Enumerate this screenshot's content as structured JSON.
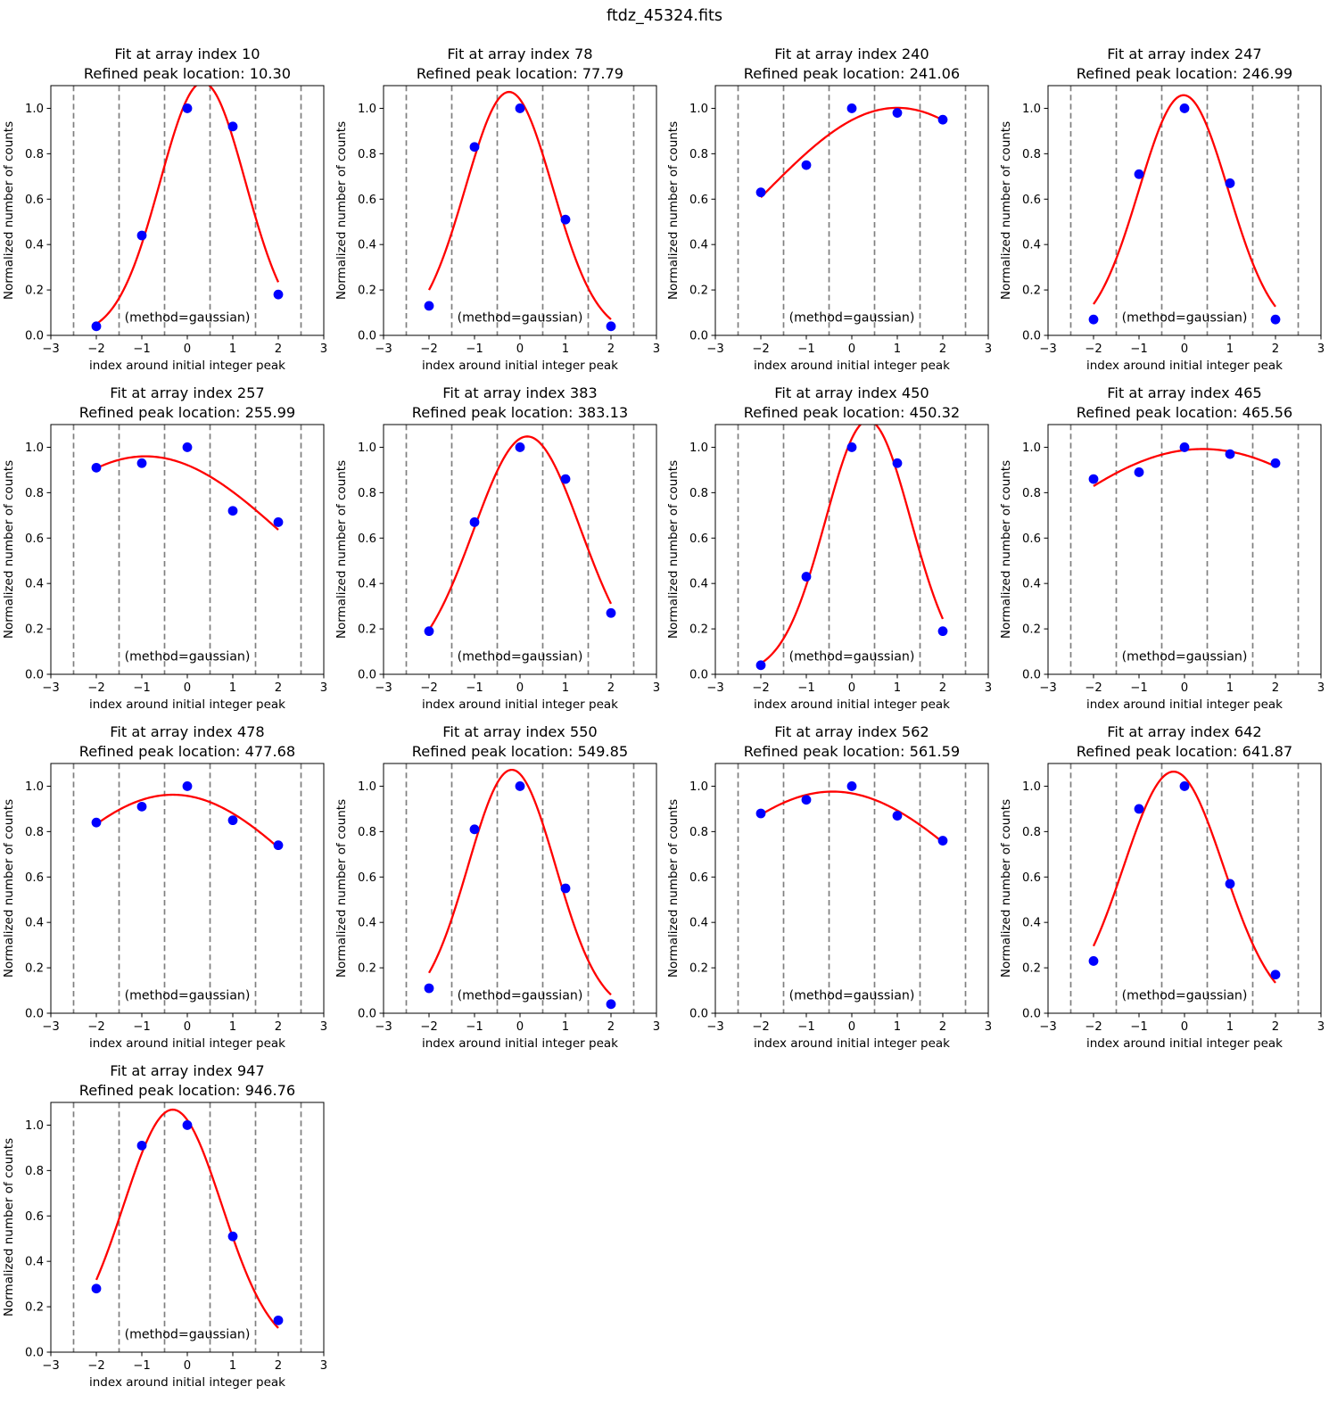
{
  "figure": {
    "title": "ftdz_45324.fits"
  },
  "colors": {
    "point": "#0000ff",
    "fit_curve": "#ff0000",
    "dashed_line": "#7f7f7f",
    "spine": "#000000",
    "text": "#000000",
    "background": "#ffffff"
  },
  "axes_common": {
    "xlabel": "index around initial integer peak",
    "ylabel": "Normalized number of counts",
    "annotation": "(method=gaussian)",
    "xlim": [
      -3,
      3
    ],
    "ylim": [
      0,
      1.1
    ],
    "xticks": [
      -3,
      -2,
      -1,
      0,
      1,
      2,
      3
    ],
    "xtick_labels": [
      "−3",
      "−2",
      "−1",
      "0",
      "1",
      "2",
      "3"
    ],
    "yticks": [
      0.0,
      0.2,
      0.4,
      0.6,
      0.8,
      1.0
    ],
    "ytick_labels": [
      "0.0",
      "0.2",
      "0.4",
      "0.6",
      "0.8",
      "1.0"
    ],
    "dashed_vlines": [
      -2.5,
      -1.5,
      -0.5,
      0.5,
      1.5,
      2.5
    ],
    "grid": false,
    "fit_method": "gaussian",
    "fit_x_range": [
      -2,
      2
    ]
  },
  "chart_data": [
    {
      "type": "scatter",
      "fit": "gaussian",
      "title": "Fit at array index 10",
      "subtitle": "Refined peak location: 10.30",
      "array_index": 10,
      "refined_peak_location": 10.3,
      "x": [
        -2,
        -1,
        0,
        1,
        2
      ],
      "y": [
        0.04,
        0.44,
        1.0,
        0.92,
        0.18
      ]
    },
    {
      "type": "scatter",
      "fit": "gaussian",
      "title": "Fit at array index 78",
      "subtitle": "Refined peak location: 77.79",
      "array_index": 78,
      "refined_peak_location": 77.79,
      "x": [
        -2,
        -1,
        0,
        1,
        2
      ],
      "y": [
        0.13,
        0.83,
        1.0,
        0.51,
        0.04
      ]
    },
    {
      "type": "scatter",
      "fit": "gaussian",
      "title": "Fit at array index 240",
      "subtitle": "Refined peak location: 241.06",
      "array_index": 240,
      "refined_peak_location": 241.06,
      "x": [
        -2,
        -1,
        0,
        1,
        2
      ],
      "y": [
        0.63,
        0.75,
        1.0,
        0.98,
        0.95
      ]
    },
    {
      "type": "scatter",
      "fit": "gaussian",
      "title": "Fit at array index 247",
      "subtitle": "Refined peak location: 246.99",
      "array_index": 247,
      "refined_peak_location": 246.99,
      "x": [
        -2,
        -1,
        0,
        1,
        2
      ],
      "y": [
        0.07,
        0.71,
        1.0,
        0.67,
        0.07
      ]
    },
    {
      "type": "scatter",
      "fit": "gaussian",
      "title": "Fit at array index 257",
      "subtitle": "Refined peak location: 255.99",
      "array_index": 257,
      "refined_peak_location": 255.99,
      "x": [
        -2,
        -1,
        0,
        1,
        2
      ],
      "y": [
        0.91,
        0.93,
        1.0,
        0.72,
        0.67
      ]
    },
    {
      "type": "scatter",
      "fit": "gaussian",
      "title": "Fit at array index 383",
      "subtitle": "Refined peak location: 383.13",
      "array_index": 383,
      "refined_peak_location": 383.13,
      "x": [
        -2,
        -1,
        0,
        1,
        2
      ],
      "y": [
        0.19,
        0.67,
        1.0,
        0.86,
        0.27
      ]
    },
    {
      "type": "scatter",
      "fit": "gaussian",
      "title": "Fit at array index 450",
      "subtitle": "Refined peak location: 450.32",
      "array_index": 450,
      "refined_peak_location": 450.32,
      "x": [
        -2,
        -1,
        0,
        1,
        2
      ],
      "y": [
        0.04,
        0.43,
        1.0,
        0.93,
        0.19
      ]
    },
    {
      "type": "scatter",
      "fit": "gaussian",
      "title": "Fit at array index 465",
      "subtitle": "Refined peak location: 465.56",
      "array_index": 465,
      "refined_peak_location": 465.56,
      "x": [
        -2,
        -1,
        0,
        1,
        2
      ],
      "y": [
        0.86,
        0.89,
        1.0,
        0.97,
        0.93
      ]
    },
    {
      "type": "scatter",
      "fit": "gaussian",
      "title": "Fit at array index 478",
      "subtitle": "Refined peak location: 477.68",
      "array_index": 478,
      "refined_peak_location": 477.68,
      "x": [
        -2,
        -1,
        0,
        1,
        2
      ],
      "y": [
        0.84,
        0.91,
        1.0,
        0.85,
        0.74
      ]
    },
    {
      "type": "scatter",
      "fit": "gaussian",
      "title": "Fit at array index 550",
      "subtitle": "Refined peak location: 549.85",
      "array_index": 550,
      "refined_peak_location": 549.85,
      "x": [
        -2,
        -1,
        0,
        1,
        2
      ],
      "y": [
        0.11,
        0.81,
        1.0,
        0.55,
        0.04
      ]
    },
    {
      "type": "scatter",
      "fit": "gaussian",
      "title": "Fit at array index 562",
      "subtitle": "Refined peak location: 561.59",
      "array_index": 562,
      "refined_peak_location": 561.59,
      "x": [
        -2,
        -1,
        0,
        1,
        2
      ],
      "y": [
        0.88,
        0.94,
        1.0,
        0.87,
        0.76
      ]
    },
    {
      "type": "scatter",
      "fit": "gaussian",
      "title": "Fit at array index 642",
      "subtitle": "Refined peak location: 641.87",
      "array_index": 642,
      "refined_peak_location": 641.87,
      "x": [
        -2,
        -1,
        0,
        1,
        2
      ],
      "y": [
        0.23,
        0.9,
        1.0,
        0.57,
        0.17
      ]
    },
    {
      "type": "scatter",
      "fit": "gaussian",
      "title": "Fit at array index 947",
      "subtitle": "Refined peak location: 946.76",
      "array_index": 947,
      "refined_peak_location": 946.76,
      "x": [
        -2,
        -1,
        0,
        1,
        2
      ],
      "y": [
        0.28,
        0.91,
        1.0,
        0.51,
        0.14
      ]
    }
  ]
}
